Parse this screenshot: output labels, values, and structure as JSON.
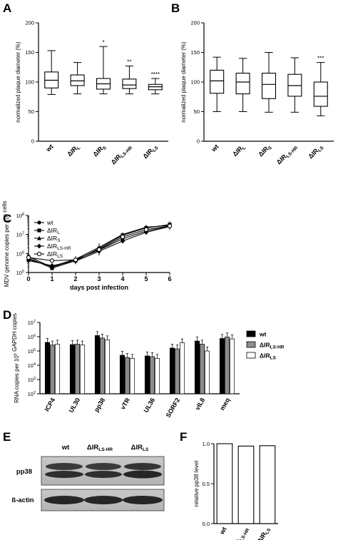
{
  "panels": [
    {
      "id": "A",
      "label": "A",
      "type": "boxplot",
      "ylabel": "normalized plaque diameter (%)",
      "ylim": [
        0,
        200
      ],
      "yticks": [
        "0",
        "50",
        "100",
        "150",
        "200"
      ],
      "categories": [
        "wt",
        "ΔIR_L",
        "ΔIR_S",
        "ΔIR_LS-HR",
        "ΔIR_LS"
      ],
      "significance": [
        "",
        "",
        "*",
        "**",
        "****"
      ],
      "boxes": [
        {
          "min": 79,
          "q1": 90,
          "median": 103,
          "q3": 117,
          "max": 153
        },
        {
          "min": 80,
          "q1": 94,
          "median": 102,
          "q3": 112,
          "max": 133
        },
        {
          "min": 80,
          "q1": 88,
          "median": 97,
          "q3": 106,
          "max": 160
        },
        {
          "min": 80,
          "q1": 89,
          "median": 95,
          "q3": 105,
          "max": 127
        },
        {
          "min": 80,
          "q1": 87,
          "median": 92,
          "q3": 96,
          "max": 106
        }
      ]
    },
    {
      "id": "B",
      "label": "B",
      "type": "boxplot",
      "ylabel": "normalized plaque diameter (%)",
      "ylim": [
        0,
        200
      ],
      "yticks": [
        "0",
        "50",
        "100",
        "150",
        "200"
      ],
      "categories": [
        "wt",
        "ΔIR_L",
        "ΔIR_S",
        "ΔIR_LS-HR",
        "ΔIR_LS"
      ],
      "significance": [
        "",
        "",
        "",
        "",
        "***"
      ],
      "boxes": [
        {
          "min": 50,
          "q1": 81,
          "median": 102,
          "q3": 120,
          "max": 142
        },
        {
          "min": 50,
          "q1": 80,
          "median": 100,
          "q3": 115,
          "max": 140
        },
        {
          "min": 49,
          "q1": 72,
          "median": 96,
          "q3": 115,
          "max": 150
        },
        {
          "min": 49,
          "q1": 76,
          "median": 94,
          "q3": 113,
          "max": 141
        },
        {
          "min": 43,
          "q1": 59,
          "median": 76,
          "q3": 100,
          "max": 133
        }
      ]
    },
    {
      "id": "C",
      "label": "C",
      "type": "line",
      "ylabel": "MDV genome copies per 10^6 cells",
      "xlabel": "days post infection",
      "log_y": true,
      "ylim": [
        100000,
        100000000
      ],
      "yticks": [
        "10^5",
        "10^6",
        "10^7",
        "10^8"
      ],
      "xticks": [
        "0",
        "1",
        "2",
        "3",
        "4",
        "5",
        "6"
      ],
      "x": [
        0,
        1,
        2,
        3,
        4,
        5,
        6
      ],
      "series": [
        {
          "name": "wt",
          "marker": "circle",
          "values": [
            700000,
            190000,
            480000,
            1500000,
            6000000,
            15000000,
            28000000
          ]
        },
        {
          "name": "ΔIR_L",
          "marker": "square",
          "values": [
            580000,
            170000,
            420000,
            1800000,
            9000000,
            22000000,
            33000000
          ]
        },
        {
          "name": "ΔIR_S",
          "marker": "triangle",
          "values": [
            480000,
            210000,
            500000,
            2100000,
            10000000,
            24000000,
            30000000
          ]
        },
        {
          "name": "ΔIR_LS-HR",
          "marker": "diamond",
          "values": [
            420000,
            230000,
            400000,
            1300000,
            4500000,
            13000000,
            26000000
          ]
        },
        {
          "name": "ΔIR_LS",
          "marker": "open-circle",
          "values": [
            610000,
            420000,
            460000,
            1600000,
            7500000,
            18000000,
            28000000
          ]
        }
      ]
    },
    {
      "id": "D",
      "label": "D",
      "type": "bar",
      "ylabel": "RNA copies per 10^5 GAPDH copies",
      "log_y": true,
      "ylim": [
        100,
        10000000
      ],
      "yticks": [
        "10^2",
        "10^3",
        "10^4",
        "10^5",
        "10^6",
        "10^7"
      ],
      "categories": [
        "ICP4",
        "UL30",
        "pp38",
        "vTR",
        "UL36",
        "SORF2",
        "vIL8",
        "meq"
      ],
      "series": [
        {
          "name": "wt",
          "color": "#000000",
          "values": [
            400000,
            280000,
            1200000,
            50000,
            45000,
            160000,
            500000,
            750000
          ]
        },
        {
          "name": "ΔIR_LS-HR",
          "color": "#8c8c8c",
          "values": [
            260000,
            300000,
            800000,
            35000,
            40000,
            140000,
            300000,
            950000
          ]
        },
        {
          "name": "ΔIR_LS",
          "color": "#ffffff",
          "values": [
            300000,
            260000,
            600000,
            30000,
            30000,
            370000,
            100000,
            700000
          ]
        }
      ]
    },
    {
      "id": "E",
      "label": "E",
      "type": "blot",
      "lanes": [
        "wt",
        "ΔIR_LS-HR",
        "ΔIR_LS"
      ],
      "rows": [
        "pp38",
        "ß-actin"
      ]
    },
    {
      "id": "F",
      "label": "F",
      "type": "bar",
      "ylabel": "relative pp38 level",
      "ylim": [
        0,
        1.0
      ],
      "yticks": [
        "0.0",
        "0.5",
        "1.0"
      ],
      "categories": [
        "wt",
        "ΔIR_LS-HR",
        "ΔIR_LS"
      ],
      "values": [
        1.0,
        0.97,
        0.975
      ]
    }
  ]
}
